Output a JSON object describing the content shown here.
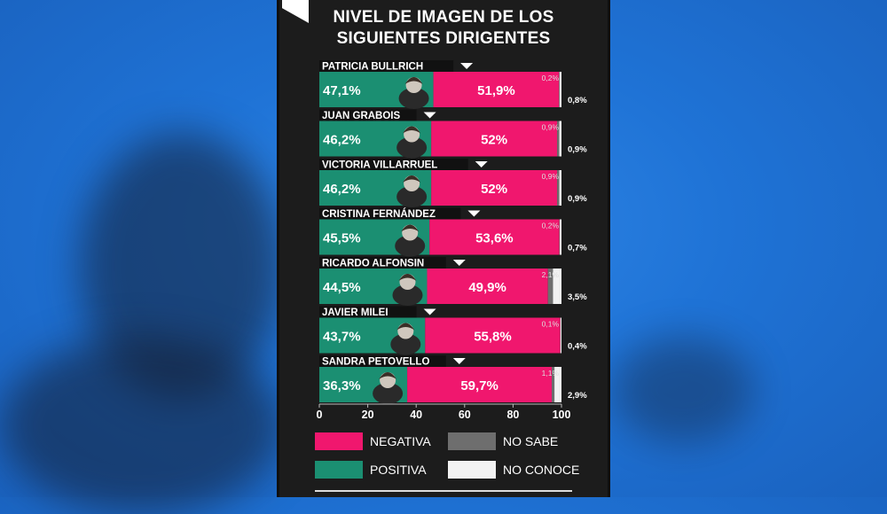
{
  "title_lines": [
    "NIVEL DE IMAGEN DE LOS",
    "SIGUIENTES DIRIGENTES"
  ],
  "colors": {
    "positiva": "#1b8f72",
    "negativa": "#f0176e",
    "no_sabe": "#6e6e6e",
    "no_conoce": "#f2f2f2",
    "background": "#1c1c1c",
    "text": "#ffffff"
  },
  "chart_data": {
    "type": "bar",
    "orientation": "horizontal",
    "stacked": true,
    "xlim": [
      0,
      100
    ],
    "xticks": [
      0,
      20,
      40,
      60,
      80,
      100
    ],
    "grid": false,
    "legend_position": "bottom",
    "categories": [
      "PATRICIA BULLRICH",
      "JUAN GRABOIS",
      "VICTORIA VILLARRUEL",
      "CRISTINA FERNÁNDEZ",
      "RICARDO ALFONSIN",
      "JAVIER MILEI",
      "SANDRA PETOVELLO"
    ],
    "series": [
      {
        "name": "POSITIVA",
        "color": "#1b8f72",
        "values": [
          47.1,
          46.2,
          46.2,
          45.5,
          44.5,
          43.7,
          36.3
        ],
        "labels": [
          "47,1%",
          "46,2%",
          "46,2%",
          "45,5%",
          "44,5%",
          "43,7%",
          "36,3%"
        ]
      },
      {
        "name": "NEGATIVA",
        "color": "#f0176e",
        "values": [
          51.9,
          52,
          52,
          53.6,
          49.9,
          55.8,
          59.7
        ],
        "labels": [
          "51,9%",
          "52%",
          "52%",
          "53,6%",
          "49,9%",
          "55,8%",
          "59,7%"
        ]
      },
      {
        "name": "NO SABE",
        "color": "#6e6e6e",
        "values": [
          0.2,
          0.9,
          0.9,
          0.2,
          2.1,
          0.1,
          1.1
        ],
        "labels": [
          "0,2%",
          "0,9%",
          "0,9%",
          "0,2%",
          "2,1%",
          "0,1%",
          "1,1%"
        ]
      },
      {
        "name": "NO CONOCE",
        "color": "#f2f2f2",
        "values": [
          0.8,
          0.9,
          0.9,
          0.7,
          3.5,
          0.4,
          2.9
        ],
        "labels": [
          "0,8%",
          "0,9%",
          "0,9%",
          "0,7%",
          "3,5%",
          "0,4%",
          "2,9%"
        ]
      }
    ],
    "legend": [
      "NEGATIVA",
      "NO SABE",
      "POSITIVA",
      "NO CONOCE"
    ]
  }
}
